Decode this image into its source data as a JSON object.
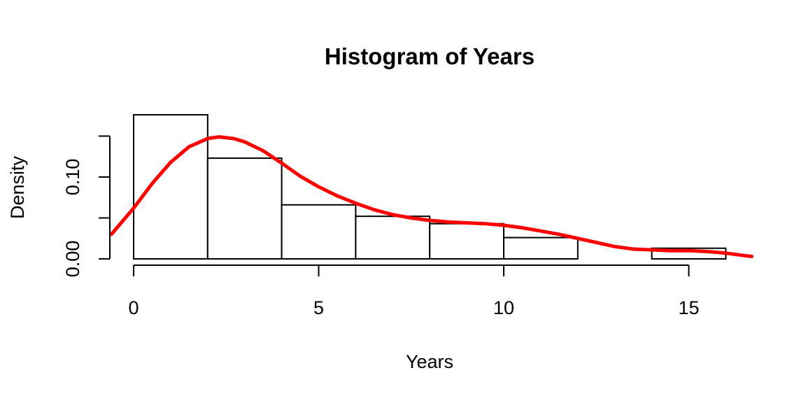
{
  "chart_data": {
    "type": "bar",
    "title": "Histogram of Years",
    "xlabel": "Years",
    "ylabel": "Density",
    "bins": [
      {
        "x0": 0,
        "x1": 2,
        "density": 0.176
      },
      {
        "x0": 2,
        "x1": 4,
        "density": 0.123
      },
      {
        "x0": 4,
        "x1": 6,
        "density": 0.066
      },
      {
        "x0": 6,
        "x1": 8,
        "density": 0.052
      },
      {
        "x0": 8,
        "x1": 10,
        "density": 0.043
      },
      {
        "x0": 10,
        "x1": 12,
        "density": 0.026
      },
      {
        "x0": 12,
        "x1": 14,
        "density": 0.0
      },
      {
        "x0": 14,
        "x1": 16,
        "density": 0.013
      }
    ],
    "density_curve": {
      "color": "#ff0000",
      "x": [
        -0.6,
        0,
        0.5,
        1,
        1.5,
        2,
        2.3,
        2.7,
        3,
        3.5,
        4,
        4.5,
        5,
        5.5,
        6,
        6.5,
        7,
        7.5,
        8,
        8.5,
        9,
        9.5,
        10,
        10.5,
        11,
        11.5,
        12,
        12.5,
        13,
        13.5,
        14,
        14.5,
        15,
        15.5,
        16,
        16.5,
        16.7
      ],
      "y": [
        0.03,
        0.062,
        0.092,
        0.118,
        0.137,
        0.147,
        0.149,
        0.147,
        0.143,
        0.132,
        0.117,
        0.101,
        0.088,
        0.077,
        0.068,
        0.06,
        0.054,
        0.05,
        0.047,
        0.045,
        0.044,
        0.043,
        0.041,
        0.038,
        0.034,
        0.03,
        0.025,
        0.02,
        0.015,
        0.012,
        0.011,
        0.01,
        0.01,
        0.009,
        0.007,
        0.004,
        0.003
      ]
    },
    "x_ticks": [
      0,
      5,
      10,
      15
    ],
    "x_tick_labels": [
      "0",
      "5",
      "10",
      "15"
    ],
    "y_ticks": [
      0.0,
      0.05,
      0.1,
      0.15
    ],
    "y_tick_labels": [
      "0.00",
      "",
      "0.10",
      ""
    ],
    "xlim": [
      -0.6,
      16.7
    ],
    "ylim": [
      0,
      0.176
    ],
    "grid": false,
    "bar_fill": "#ffffff",
    "bar_stroke": "#000000"
  }
}
